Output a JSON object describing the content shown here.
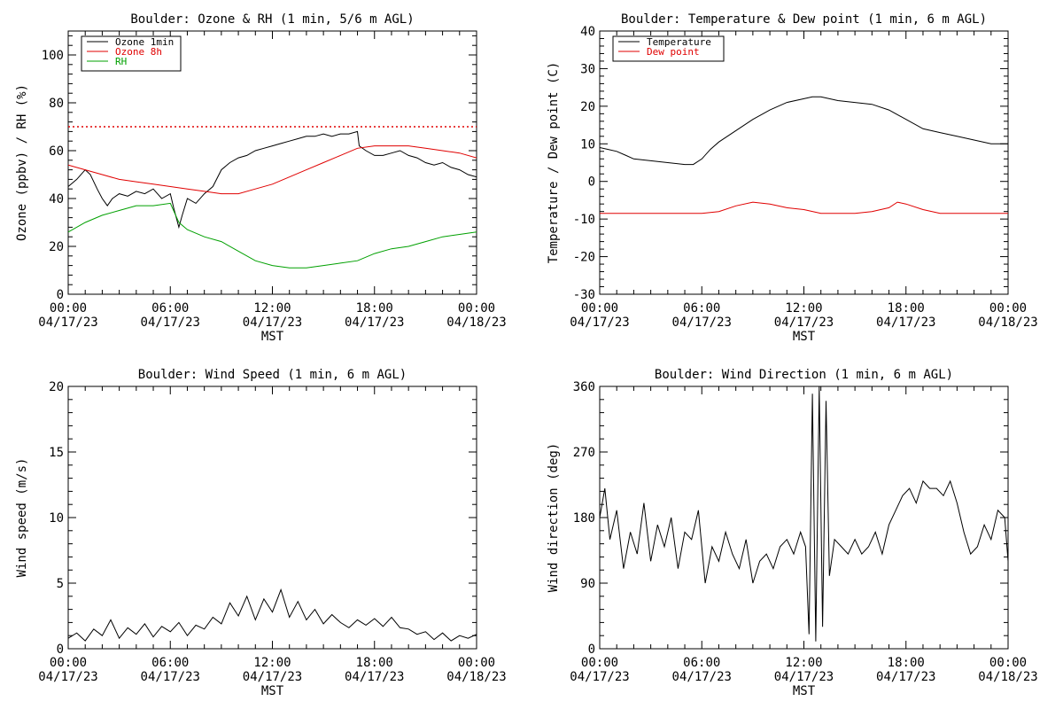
{
  "colors": {
    "ozone_1min": "#000000",
    "ozone_8h": "#e00000",
    "rh": "#00a000",
    "temperature": "#000000",
    "dew_point": "#e00000",
    "wind": "#000000",
    "threshold": "#e00000"
  },
  "chart_data": [
    {
      "type": "line",
      "title": "Boulder: Ozone & RH (1 min, 5/6 m AGL)",
      "xlabel": "MST",
      "ylabel": "Ozone (ppbv) / RH (%)",
      "xlim": [
        0,
        24
      ],
      "ylim": [
        0,
        110
      ],
      "yticks": [
        0,
        20,
        40,
        60,
        80,
        100
      ],
      "xtick_labels": [
        {
          "x": 0,
          "time": "00:00",
          "date": "04/17/23"
        },
        {
          "x": 6,
          "time": "06:00",
          "date": "04/17/23"
        },
        {
          "x": 12,
          "time": "12:00",
          "date": "04/17/23"
        },
        {
          "x": 18,
          "time": "18:00",
          "date": "04/17/23"
        },
        {
          "x": 24,
          "time": "00:00",
          "date": "04/18/23"
        }
      ],
      "legend_position": "top-left",
      "reference_line": {
        "y": 70,
        "style": "dotted",
        "color": "#e00000"
      },
      "series": [
        {
          "name": "Ozone 1min",
          "color": "#000000",
          "x": [
            0,
            0.5,
            1,
            1.3,
            1.7,
            2,
            2.3,
            2.6,
            3,
            3.5,
            4,
            4.5,
            5,
            5.5,
            6,
            6.2,
            6.5,
            6.7,
            7,
            7.5,
            8,
            8.5,
            9,
            9.5,
            10,
            10.5,
            11,
            11.5,
            12,
            12.5,
            13,
            13.5,
            14,
            14.5,
            15,
            15.5,
            16,
            16.5,
            17,
            17.1,
            17.5,
            18,
            18.5,
            19,
            19.5,
            20,
            20.5,
            21,
            21.5,
            22,
            22.5,
            23,
            23.5,
            24
          ],
          "y": [
            45,
            48,
            52,
            50,
            44,
            40,
            37,
            40,
            42,
            41,
            43,
            42,
            44,
            40,
            42,
            36,
            28,
            33,
            40,
            38,
            42,
            45,
            52,
            55,
            57,
            58,
            60,
            61,
            62,
            63,
            64,
            65,
            66,
            66,
            67,
            66,
            67,
            67,
            68,
            62,
            60,
            58,
            58,
            59,
            60,
            58,
            57,
            55,
            54,
            55,
            53,
            52,
            50,
            49
          ]
        },
        {
          "name": "Ozone 8h",
          "color": "#e00000",
          "x": [
            0,
            1,
            2,
            3,
            4,
            5,
            6,
            7,
            8,
            9,
            10,
            11,
            12,
            13,
            14,
            15,
            16,
            17,
            18,
            19,
            20,
            21,
            22,
            23,
            24
          ],
          "y": [
            54,
            52,
            50,
            48,
            47,
            46,
            45,
            44,
            43,
            42,
            42,
            44,
            46,
            49,
            52,
            55,
            58,
            61,
            62,
            62,
            62,
            61,
            60,
            59,
            57
          ]
        },
        {
          "name": "RH",
          "color": "#00a000",
          "x": [
            0,
            1,
            2,
            3,
            4,
            5,
            6,
            6.5,
            7,
            8,
            9,
            10,
            11,
            12,
            13,
            14,
            15,
            16,
            17,
            18,
            19,
            20,
            21,
            22,
            23,
            24
          ],
          "y": [
            26,
            30,
            33,
            35,
            37,
            37,
            38,
            30,
            27,
            24,
            22,
            18,
            14,
            12,
            11,
            11,
            12,
            13,
            14,
            17,
            19,
            20,
            22,
            24,
            25,
            26
          ]
        }
      ]
    },
    {
      "type": "line",
      "title": "Boulder: Temperature & Dew point (1 min, 6 m AGL)",
      "xlabel": "MST",
      "ylabel": "Temperature / Dew point (C)",
      "xlim": [
        0,
        24
      ],
      "ylim": [
        -30,
        40
      ],
      "yticks": [
        -30,
        -20,
        -10,
        0,
        10,
        20,
        30,
        40
      ],
      "xtick_labels": [
        {
          "x": 0,
          "time": "00:00",
          "date": "04/17/23"
        },
        {
          "x": 6,
          "time": "06:00",
          "date": "04/17/23"
        },
        {
          "x": 12,
          "time": "12:00",
          "date": "04/17/23"
        },
        {
          "x": 18,
          "time": "18:00",
          "date": "04/17/23"
        },
        {
          "x": 24,
          "time": "00:00",
          "date": "04/18/23"
        }
      ],
      "legend_position": "top-left",
      "series": [
        {
          "name": "Temperature",
          "color": "#000000",
          "x": [
            0,
            0.5,
            1,
            1.5,
            2,
            3,
            4,
            5,
            5.5,
            6,
            6.5,
            7,
            8,
            9,
            10,
            11,
            12,
            12.5,
            13,
            14,
            15,
            16,
            17,
            18,
            19,
            20,
            21,
            22,
            23,
            24
          ],
          "y": [
            9,
            8.5,
            8,
            7,
            6,
            5.5,
            5,
            4.5,
            4.5,
            6,
            8.5,
            10.5,
            13.5,
            16.5,
            19,
            21,
            22,
            22.5,
            22.5,
            21.5,
            21,
            20.5,
            19,
            16.5,
            14,
            13,
            12,
            11,
            10,
            10
          ]
        },
        {
          "name": "Dew point",
          "color": "#e00000",
          "x": [
            0,
            1,
            2,
            3,
            4,
            5,
            6,
            7,
            8,
            9,
            10,
            11,
            12,
            13,
            14,
            15,
            16,
            17,
            17.5,
            18,
            19,
            20,
            21,
            22,
            23,
            24
          ],
          "y": [
            -8.5,
            -8.5,
            -8.5,
            -8.5,
            -8.5,
            -8.5,
            -8.5,
            -8,
            -6.5,
            -5.5,
            -6,
            -7,
            -7.5,
            -8.5,
            -8.5,
            -8.5,
            -8,
            -7,
            -5.5,
            -6,
            -7.5,
            -8.5,
            -8.5,
            -8.5,
            -8.5,
            -8.5
          ]
        }
      ]
    },
    {
      "type": "line",
      "title": "Boulder: Wind Speed (1 min, 6 m AGL)",
      "xlabel": "MST",
      "ylabel": "Wind speed (m/s)",
      "xlim": [
        0,
        24
      ],
      "ylim": [
        0,
        20
      ],
      "yticks": [
        0,
        5,
        10,
        15,
        20
      ],
      "xtick_labels": [
        {
          "x": 0,
          "time": "00:00",
          "date": "04/17/23"
        },
        {
          "x": 6,
          "time": "06:00",
          "date": "04/17/23"
        },
        {
          "x": 12,
          "time": "12:00",
          "date": "04/17/23"
        },
        {
          "x": 18,
          "time": "18:00",
          "date": "04/17/23"
        },
        {
          "x": 24,
          "time": "00:00",
          "date": "04/18/23"
        }
      ],
      "series": [
        {
          "color": "#000000",
          "x": [
            0,
            0.5,
            1,
            1.5,
            2,
            2.5,
            3,
            3.5,
            4,
            4.5,
            5,
            5.5,
            6,
            6.5,
            7,
            7.5,
            8,
            8.5,
            9,
            9.5,
            10,
            10.5,
            11,
            11.5,
            12,
            12.5,
            13,
            13.5,
            14,
            14.5,
            15,
            15.5,
            16,
            16.5,
            17,
            17.5,
            18,
            18.5,
            19,
            19.5,
            20,
            20.5,
            21,
            21.5,
            22,
            22.5,
            23,
            23.5,
            24
          ],
          "y": [
            0.8,
            1.2,
            0.6,
            1.5,
            1.0,
            2.2,
            0.8,
            1.6,
            1.1,
            1.9,
            0.9,
            1.7,
            1.3,
            2.0,
            1.0,
            1.8,
            1.5,
            2.4,
            1.9,
            3.5,
            2.5,
            4.0,
            2.2,
            3.8,
            2.8,
            4.5,
            2.4,
            3.6,
            2.2,
            3.0,
            1.9,
            2.6,
            2.0,
            1.6,
            2.2,
            1.8,
            2.3,
            1.7,
            2.4,
            1.6,
            1.5,
            1.1,
            1.3,
            0.7,
            1.2,
            0.6,
            1.0,
            0.8,
            1.1
          ]
        }
      ]
    },
    {
      "type": "line",
      "title": "Boulder: Wind Direction (1 min, 6 m AGL)",
      "xlabel": "MST",
      "ylabel": "Wind direction (deg)",
      "xlim": [
        0,
        24
      ],
      "ylim": [
        0,
        360
      ],
      "yticks": [
        0,
        90,
        180,
        270,
        360
      ],
      "xtick_labels": [
        {
          "x": 0,
          "time": "00:00",
          "date": "04/17/23"
        },
        {
          "x": 6,
          "time": "06:00",
          "date": "04/17/23"
        },
        {
          "x": 12,
          "time": "12:00",
          "date": "04/17/23"
        },
        {
          "x": 18,
          "time": "18:00",
          "date": "04/17/23"
        },
        {
          "x": 24,
          "time": "00:00",
          "date": "04/18/23"
        }
      ],
      "series": [
        {
          "color": "#000000",
          "x": [
            0,
            0.3,
            0.6,
            1,
            1.4,
            1.8,
            2.2,
            2.6,
            3,
            3.4,
            3.8,
            4.2,
            4.6,
            5,
            5.4,
            5.8,
            6.2,
            6.6,
            7,
            7.4,
            7.8,
            8.2,
            8.6,
            9,
            9.4,
            9.8,
            10.2,
            10.6,
            11,
            11.4,
            11.8,
            12.1,
            12.3,
            12.5,
            12.7,
            12.9,
            13.1,
            13.3,
            13.5,
            13.8,
            14.2,
            14.6,
            15,
            15.4,
            15.8,
            16.2,
            16.6,
            17,
            17.4,
            17.8,
            18.2,
            18.6,
            19,
            19.4,
            19.8,
            20.2,
            20.6,
            21,
            21.4,
            21.8,
            22.2,
            22.6,
            23,
            23.4,
            23.8,
            24
          ],
          "y": [
            180,
            220,
            150,
            190,
            110,
            160,
            130,
            200,
            120,
            170,
            140,
            180,
            110,
            160,
            150,
            190,
            90,
            140,
            120,
            160,
            130,
            110,
            150,
            90,
            120,
            130,
            110,
            140,
            150,
            130,
            160,
            140,
            20,
            350,
            10,
            360,
            30,
            340,
            100,
            150,
            140,
            130,
            150,
            130,
            140,
            160,
            130,
            170,
            190,
            210,
            220,
            200,
            230,
            220,
            220,
            210,
            230,
            200,
            160,
            130,
            140,
            170,
            150,
            190,
            180,
            120
          ]
        }
      ]
    }
  ]
}
